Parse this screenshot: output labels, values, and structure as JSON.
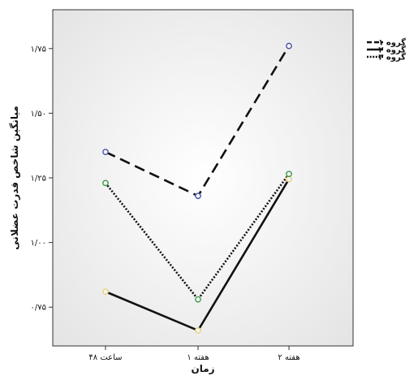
{
  "chart_data": {
    "type": "line",
    "title": "",
    "xlabel": "زمان",
    "ylabel": "میانگین شاخص قدرت عضلانی",
    "categories": [
      "۴۸ ساعت",
      "۱ هفته",
      "۲ هفته"
    ],
    "ylim": [
      0.6,
      1.9
    ],
    "yticks": [
      0.75,
      1.0,
      1.25,
      1.5,
      1.75
    ],
    "ytick_labels": [
      "۰/۷۵",
      "۱/۰۰",
      "۱/۲۵",
      "۱/۵۰",
      "۱/۷۵"
    ],
    "grid": false,
    "legend_position": "right-outside-top",
    "series": [
      {
        "name": "گروه ۱",
        "values": [
          1.35,
          1.18,
          1.76
        ],
        "style": "dashed",
        "marker_color": "#4a55a8"
      },
      {
        "name": "گروه ۲",
        "values": [
          0.81,
          0.66,
          1.245
        ],
        "style": "solid",
        "marker_color": "#e8d27a"
      },
      {
        "name": "گروه ۳",
        "values": [
          1.23,
          0.78,
          1.265
        ],
        "style": "dotted",
        "marker_color": "#3a9a4a"
      }
    ]
  }
}
